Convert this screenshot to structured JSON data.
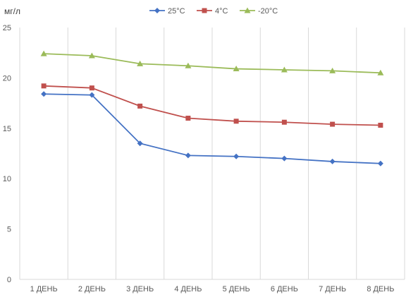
{
  "chart_data": {
    "type": "line",
    "title": "",
    "xlabel": "",
    "ylabel": "мг/л",
    "ylim": [
      0,
      25
    ],
    "yticks": [
      0,
      5,
      10,
      15,
      20,
      25
    ],
    "grid": "vertical",
    "legend": "top-center",
    "categories": [
      "1 ДЕНЬ",
      "2 ДЕНЬ",
      "3 ДЕНЬ",
      "4 ДЕНЬ",
      "5 ДЕНЬ",
      "6 ДЕНЬ",
      "7 ДЕНЬ",
      "8 ДЕНЬ"
    ],
    "series": [
      {
        "name": "25°C",
        "color": "#4472C4",
        "marker": "diamond",
        "values": [
          18.4,
          18.3,
          13.5,
          12.3,
          12.2,
          12.0,
          11.7,
          11.5
        ]
      },
      {
        "name": "4°C",
        "color": "#C0504D",
        "marker": "square",
        "values": [
          19.2,
          19.0,
          17.2,
          16.0,
          15.7,
          15.6,
          15.4,
          15.3
        ]
      },
      {
        "name": "-20°C",
        "color": "#9BBB59",
        "marker": "triangle",
        "values": [
          22.4,
          22.2,
          21.4,
          21.2,
          20.9,
          20.8,
          20.7,
          20.5
        ]
      }
    ]
  }
}
